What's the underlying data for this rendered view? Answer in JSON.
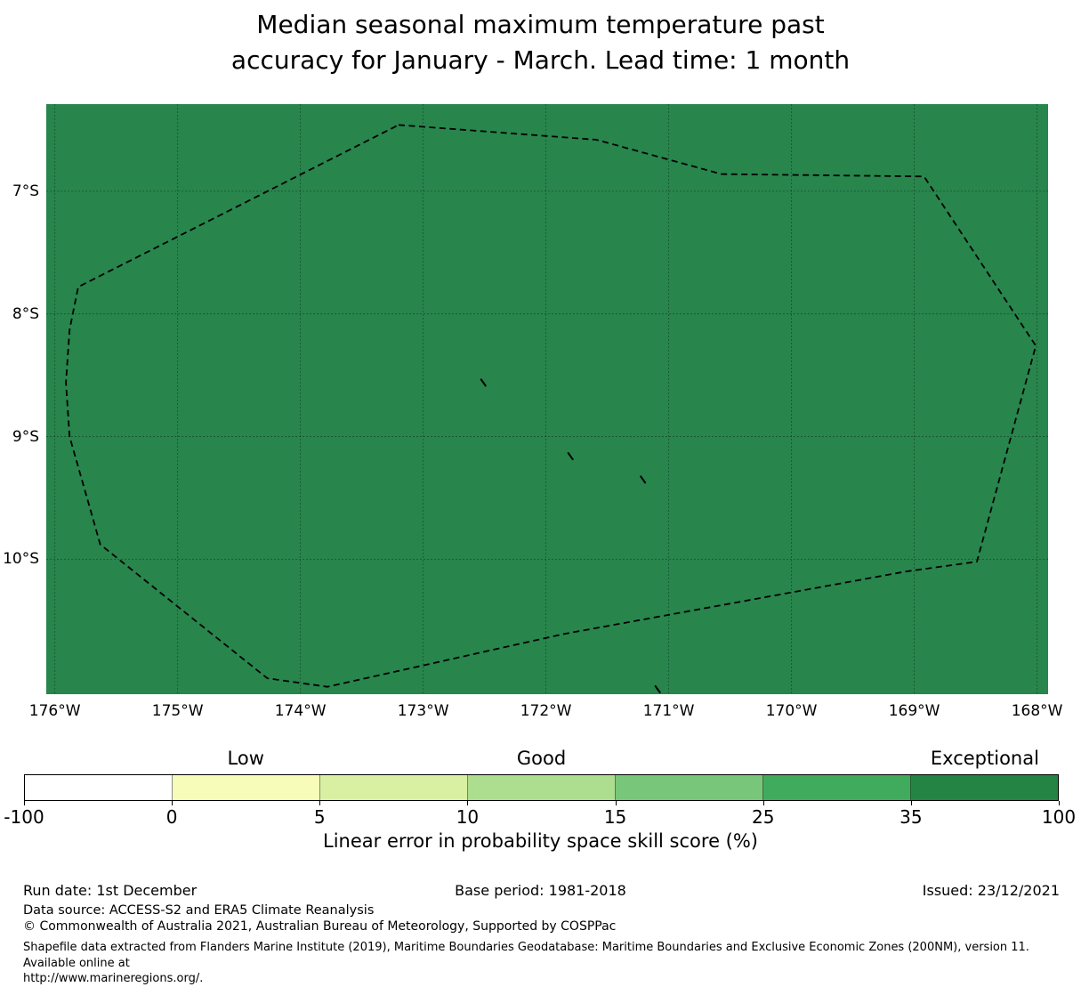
{
  "title": {
    "line1": "Median seasonal maximum temperature past",
    "line2": "accuracy for January - March. Lead time: 1 month"
  },
  "colorbar": {
    "axis_label": "Linear error in probability space skill score (%)",
    "tick_labels": [
      "-100",
      "0",
      "5",
      "10",
      "15",
      "25",
      "35",
      "100"
    ],
    "segment_colors": [
      "#ffffff",
      "#f7fcb9",
      "#d9f0a3",
      "#addd8e",
      "#78c679",
      "#41ab5d",
      "#238443"
    ],
    "category_labels": [
      {
        "text": "Low",
        "segment_index": 1
      },
      {
        "text": "Good",
        "segment_index": 3
      },
      {
        "text": "Exceptional",
        "segment_index": 6
      }
    ]
  },
  "footer": {
    "run_date": "Run date: 1st December",
    "base_period": "Base period: 1981-2018",
    "issued": "Issued: 23/12/2021",
    "data_source": "Data source: ACCESS-S2 and ERA5 Climate Reanalysis",
    "copyright": "© Commonwealth of Australia 2021, Australian Bureau of Meteorology, Supported by COSPPac",
    "shapefile_line1": "Shapefile data extracted from Flanders Marine Institute (2019), Maritime Boundaries Geodatabase: Maritime Boundaries and Exclusive Economic Zones (200NM), version 11. Available online at",
    "shapefile_line2": "http://www.marineregions.org/."
  },
  "chart_data": {
    "type": "heatmap",
    "title": "Median seasonal maximum temperature past accuracy for January - March. Lead time: 1 month",
    "field_description": "Uniform skill-score fill over the whole mapped region; value falls in the 35-100 (Exceptional) bin",
    "map_fill_color": "#28854c",
    "grid_color": "rgba(0,0,0,0.38)",
    "boundary_color": "#000000",
    "x_axis": {
      "tick_labels": [
        "176°W",
        "175°W",
        "174°W",
        "173°W",
        "172°W",
        "171°W",
        "170°W",
        "169°W",
        "168°W"
      ],
      "tick_lon_w": [
        176,
        175,
        174,
        173,
        172,
        171,
        170,
        169,
        168
      ],
      "range_lon_w": [
        176.07,
        167.91
      ]
    },
    "y_axis": {
      "tick_labels": [
        "7°S",
        "8°S",
        "9°S",
        "10°S"
      ],
      "tick_lat_s": [
        7,
        8,
        9,
        10
      ],
      "range_lat_s": [
        6.29,
        11.1
      ]
    },
    "colorbar": {
      "bin_edges": [
        -100,
        0,
        5,
        10,
        15,
        25,
        35,
        100
      ],
      "colors": [
        "#ffffff",
        "#f7fcb9",
        "#d9f0a3",
        "#addd8e",
        "#78c679",
        "#41ab5d",
        "#238443"
      ],
      "categories": [
        "Low",
        "Good",
        "Exceptional"
      ],
      "label": "Linear error in probability space skill score (%)",
      "legend_position": "bottom"
    },
    "eez_boundary_lon_w_lat_s": [
      [
        173.2,
        6.46
      ],
      [
        171.59,
        6.58
      ],
      [
        170.57,
        6.86
      ],
      [
        168.92,
        6.88
      ],
      [
        168.01,
        8.26
      ],
      [
        168.49,
        10.02
      ],
      [
        169.07,
        10.1
      ],
      [
        171.86,
        10.61
      ],
      [
        173.78,
        11.04
      ],
      [
        174.27,
        10.97
      ],
      [
        175.63,
        9.88
      ],
      [
        175.88,
        9.0
      ],
      [
        175.91,
        8.56
      ],
      [
        175.88,
        8.13
      ],
      [
        175.81,
        7.78
      ]
    ],
    "islands_lon_w_lat_s": [
      [
        172.51,
        8.56
      ],
      [
        171.8,
        9.16
      ],
      [
        171.21,
        9.35
      ],
      [
        171.09,
        11.06
      ]
    ]
  }
}
